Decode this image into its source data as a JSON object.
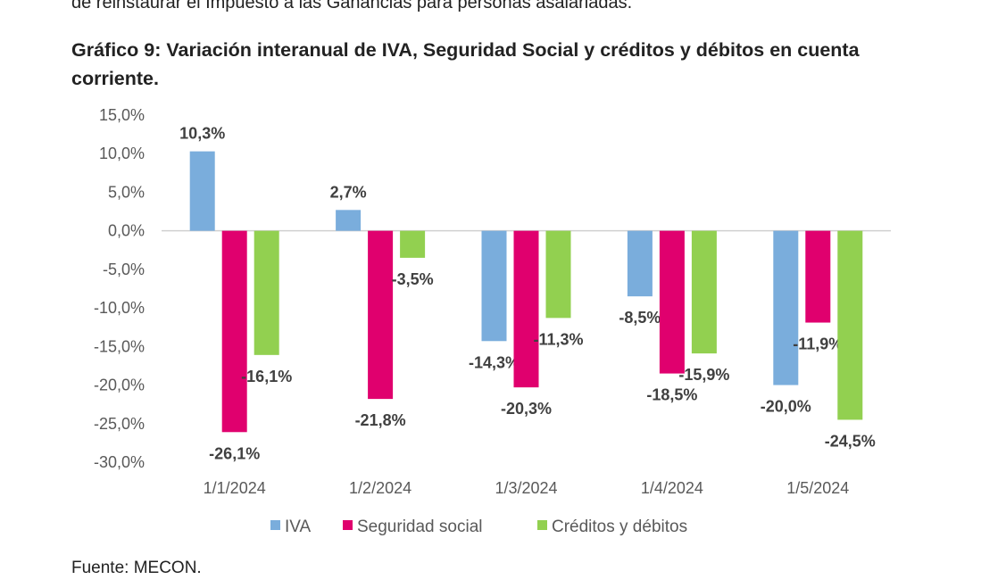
{
  "intro_text": "de reinstaurar el Impuesto a las Ganancias para personas asalariadas.",
  "chart_title": "Gráfico 9: Variación interanual de IVA, Seguridad Social y créditos y débitos en cuenta corriente.",
  "source": "Fuente: MECON.",
  "chart_data": {
    "type": "bar",
    "title": "Gráfico 9: Variación interanual de IVA, Seguridad Social y créditos y débitos en cuenta corriente.",
    "xlabel": "",
    "ylabel": "",
    "categories": [
      "1/1/2024",
      "1/2/2024",
      "1/3/2024",
      "1/4/2024",
      "1/5/2024"
    ],
    "series": [
      {
        "name": "IVA",
        "color": "#7aaddc",
        "values": [
          10.3,
          2.7,
          -14.3,
          -8.5,
          -20.0
        ],
        "labels": [
          "10,3%",
          "2,7%",
          "-14,3%",
          "-8,5%",
          "-20,0%"
        ]
      },
      {
        "name": "Seguridad social",
        "color": "#e0006e",
        "values": [
          -26.1,
          -21.8,
          -20.3,
          -18.5,
          -11.9
        ],
        "labels": [
          "-26,1%",
          "-21,8%",
          "-20,3%",
          "-18,5%",
          "-11,9%"
        ]
      },
      {
        "name": "Créditos y débitos",
        "color": "#92d050",
        "values": [
          -16.1,
          -3.5,
          -11.3,
          -15.9,
          -24.5
        ],
        "labels": [
          "-16,1%",
          "-3,5%",
          "-11,3%",
          "-15,9%",
          "-24,5%"
        ]
      }
    ],
    "ylim": [
      -30,
      15
    ],
    "yticks": [
      15,
      10,
      5,
      0,
      -5,
      -10,
      -15,
      -20,
      -25,
      -30
    ],
    "ytick_labels": [
      "15,0%",
      "10,0%",
      "5,0%",
      "0,0%",
      "-5,0%",
      "-10,0%",
      "-15,0%",
      "-20,0%",
      "-25,0%",
      "-30,0%"
    ],
    "grid": false,
    "legend_position": "bottom",
    "data_labels": true
  }
}
